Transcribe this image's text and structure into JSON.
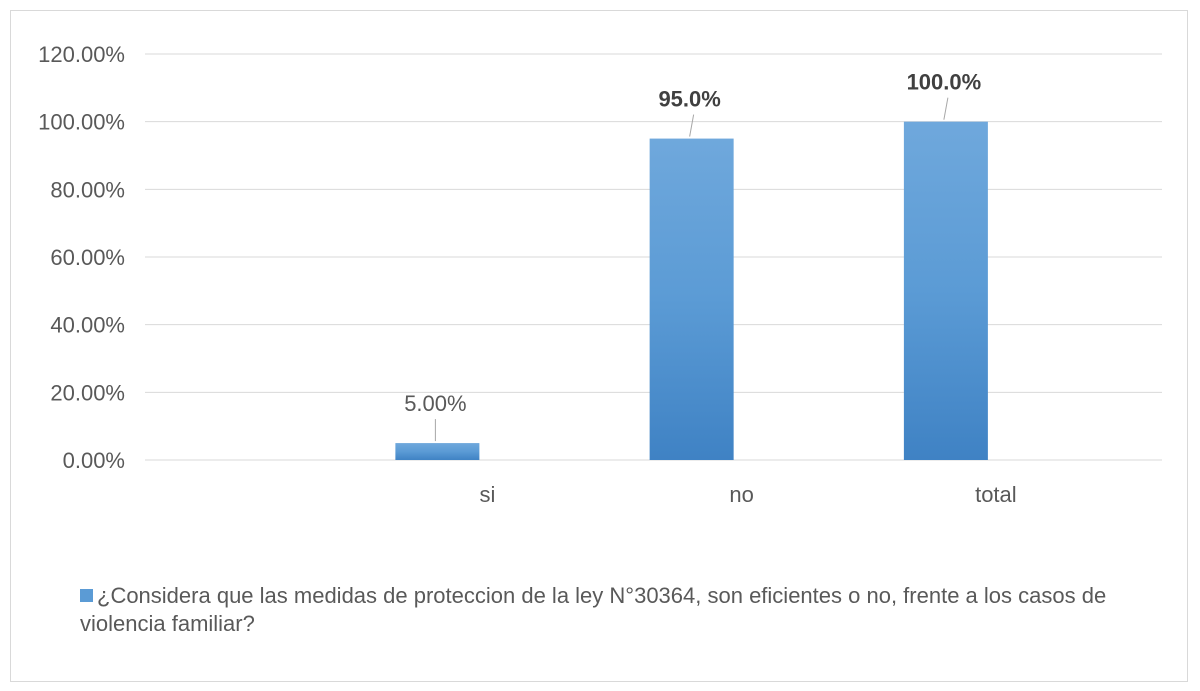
{
  "chart_data": {
    "type": "bar",
    "categories": [
      "si",
      "no",
      "total"
    ],
    "series": [
      {
        "name": "¿Considera que las medidas de proteccion de la ley N°30364, son eficientes o no, frente a los casos de violencia familiar?",
        "values": [
          0.05,
          0.95,
          1.0
        ],
        "labels": [
          "5.00%",
          "95.0%",
          "100.0%"
        ],
        "label_bold": [
          false,
          true,
          true
        ]
      }
    ],
    "y_ticks": [
      "0.00%",
      "20.00%",
      "40.00%",
      "60.00%",
      "80.00%",
      "100.00%",
      "120.00%"
    ],
    "ylim": [
      0,
      1.2
    ],
    "grid": true,
    "legend_position": "bottom",
    "colors": {
      "bar": "#5b9bd5",
      "bar_top": "#6fa8dc",
      "grid": "#d9d9d9",
      "text": "#595959",
      "label_bold": "#404040"
    }
  }
}
